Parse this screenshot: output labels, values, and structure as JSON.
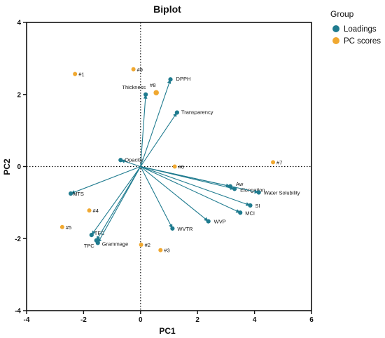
{
  "chart_data": {
    "type": "scatter",
    "title": "Biplot",
    "xlabel": "PC1",
    "ylabel": "PC2",
    "xlim": [
      -4,
      6
    ],
    "ylim": [
      -4,
      4
    ],
    "xticks": [
      "-4",
      "-2",
      "0",
      "2",
      "4",
      "6"
    ],
    "yticks": [
      "-4",
      "-2",
      "0",
      "2",
      "4"
    ],
    "grid": false,
    "zero_lines": "dotted",
    "legend": {
      "title": "Group",
      "position": "top-right",
      "entries": [
        {
          "name": "Loadings",
          "color": "#1f7b8f"
        },
        {
          "name": "PC scores",
          "color": "#f0a830"
        }
      ]
    },
    "series": [
      {
        "name": "Loadings",
        "color": "#1f7b8f",
        "marker": "arrow",
        "points": [
          {
            "label": "DPPH",
            "x": 1.05,
            "y": 2.42
          },
          {
            "label": "Thickness",
            "x": 0.18,
            "y": 2.0
          },
          {
            "label": "Transparency",
            "x": 1.28,
            "y": 1.5
          },
          {
            "label": "Opacity",
            "x": -0.7,
            "y": 0.18
          },
          {
            "label": "Aw",
            "x": 3.15,
            "y": -0.55
          },
          {
            "label": "Elongation",
            "x": 3.3,
            "y": -0.62
          },
          {
            "label": "Water Solubility",
            "x": 4.15,
            "y": -0.72
          },
          {
            "label": "SI",
            "x": 3.85,
            "y": -1.08
          },
          {
            "label": "MCI",
            "x": 3.5,
            "y": -1.28
          },
          {
            "label": "WVP",
            "x": 2.38,
            "y": -1.52
          },
          {
            "label": "WVTR",
            "x": 1.12,
            "y": -1.72
          },
          {
            "label": "MTS",
            "x": -2.45,
            "y": -0.75
          },
          {
            "label": "TFC",
            "x": -1.72,
            "y": -1.9
          },
          {
            "label": "TPC",
            "x": -1.55,
            "y": -2.05
          },
          {
            "label": "Grammage",
            "x": -1.5,
            "y": -2.12
          }
        ]
      },
      {
        "name": "PC scores",
        "color": "#f0a830",
        "marker": "circle",
        "points": [
          {
            "label": "#1",
            "x": -2.3,
            "y": 2.57
          },
          {
            "label": "#2",
            "x": 0.02,
            "y": -2.17
          },
          {
            "label": "#3",
            "x": 0.7,
            "y": -2.32
          },
          {
            "label": "#4",
            "x": -1.8,
            "y": -1.22
          },
          {
            "label": "#5",
            "x": -2.75,
            "y": -1.68
          },
          {
            "label": "#6",
            "x": 1.2,
            "y": 0.0
          },
          {
            "label": "#7",
            "x": 4.65,
            "y": 0.12
          },
          {
            "label": "#8",
            "x": 0.55,
            "y": 2.05
          },
          {
            "label": "#9",
            "x": -0.25,
            "y": 2.7
          }
        ]
      }
    ]
  }
}
